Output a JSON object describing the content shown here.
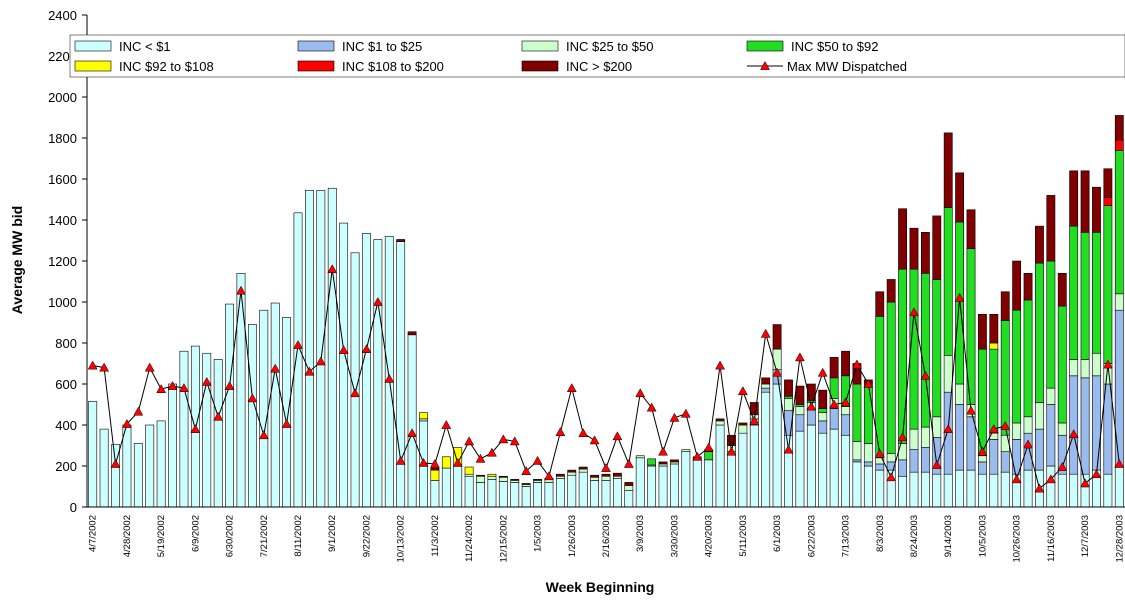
{
  "chart_data": {
    "type": "bar",
    "stacked": true,
    "y_label": "Average MW bid",
    "x_label": "Week Beginning",
    "categories": [
      "4/7/2002",
      null,
      null,
      "4/28/2002",
      null,
      null,
      "5/19/2002",
      null,
      null,
      "6/9/2002",
      null,
      null,
      "6/30/2002",
      null,
      null,
      "7/21/2002",
      null,
      null,
      "8/11/2002",
      null,
      null,
      "9/1/2002",
      null,
      null,
      "9/22/2002",
      null,
      null,
      "10/13/2002",
      null,
      null,
      "11/3/2002",
      null,
      null,
      "11/24/2002",
      null,
      null,
      "12/15/2002",
      null,
      null,
      "1/5/2003",
      null,
      null,
      "1/26/2003",
      null,
      null,
      "2/16/2003",
      null,
      null,
      "3/9/2003",
      null,
      null,
      "3/30/2003",
      null,
      null,
      "4/20/2003",
      null,
      null,
      "5/11/2003",
      null,
      null,
      "6/1/2003",
      null,
      null,
      "6/22/2003",
      null,
      null,
      "7/13/2003",
      null,
      null,
      "8/3/2003",
      null,
      null,
      "8/24/2003",
      null,
      null,
      "9/14/2003",
      null,
      null,
      "10/5/2003",
      null,
      null,
      "10/26/2003",
      null,
      null,
      "11/16/2003",
      null,
      null,
      "12/7/2003",
      null,
      null,
      "12/28/2003"
    ],
    "ylim": [
      0,
      2400
    ],
    "yticks": [
      0,
      200,
      400,
      600,
      800,
      1000,
      1200,
      1400,
      1600,
      1800,
      2000,
      2200,
      2400
    ],
    "grid": false,
    "series": [
      {
        "name": "INC < $1",
        "type": "bar",
        "color": "#ccffff",
        "values": [
          515,
          380,
          305,
          400,
          310,
          400,
          420,
          600,
          760,
          785,
          750,
          720,
          990,
          1140,
          890,
          960,
          995,
          925,
          1435,
          1545,
          1545,
          1555,
          1385,
          1240,
          1335,
          1305,
          1320,
          1295,
          840,
          420,
          130,
          190,
          200,
          150,
          120,
          135,
          125,
          120,
          100,
          120,
          120,
          140,
          155,
          170,
          130,
          130,
          140,
          80,
          240,
          200,
          200,
          210,
          270,
          230,
          230,
          400,
          270,
          360,
          400,
          560,
          600,
          350,
          370,
          400,
          360,
          380,
          350,
          220,
          200,
          180,
          180,
          150,
          170,
          170,
          160,
          160,
          180,
          180,
          160,
          160,
          170,
          160,
          180,
          180,
          200,
          160,
          160,
          160,
          180,
          160,
          200
        ]
      },
      {
        "name": "INC $1 to $25",
        "type": "bar",
        "color": "#99bbee",
        "values": [
          0,
          0,
          0,
          0,
          0,
          0,
          0,
          0,
          0,
          0,
          0,
          0,
          0,
          0,
          0,
          0,
          0,
          0,
          0,
          0,
          0,
          0,
          0,
          0,
          0,
          0,
          0,
          0,
          0,
          0,
          0,
          0,
          0,
          0,
          0,
          0,
          0,
          0,
          0,
          0,
          0,
          0,
          0,
          0,
          0,
          0,
          0,
          0,
          0,
          0,
          0,
          0,
          0,
          0,
          0,
          0,
          0,
          0,
          30,
          20,
          70,
          120,
          80,
          80,
          60,
          100,
          100,
          10,
          20,
          30,
          40,
          80,
          110,
          120,
          180,
          400,
          320,
          260,
          60,
          170,
          100,
          170,
          180,
          200,
          300,
          190,
          480,
          470,
          460,
          440,
          760
        ]
      },
      {
        "name": "INC $25 to $50",
        "type": "bar",
        "color": "#ccffcc",
        "values": [
          0,
          0,
          0,
          0,
          0,
          0,
          0,
          0,
          0,
          0,
          0,
          0,
          0,
          0,
          0,
          0,
          0,
          0,
          0,
          0,
          0,
          0,
          0,
          0,
          0,
          0,
          0,
          0,
          0,
          10,
          0,
          0,
          0,
          10,
          30,
          15,
          20,
          10,
          10,
          10,
          20,
          10,
          15,
          15,
          15,
          20,
          10,
          25,
          10,
          5,
          10,
          10,
          10,
          0,
          0,
          20,
          30,
          40,
          20,
          20,
          100,
          60,
          40,
          30,
          40,
          50,
          40,
          90,
          90,
          30,
          40,
          80,
          100,
          100,
          100,
          180,
          100,
          60,
          30,
          30,
          80,
          80,
          80,
          130,
          80,
          60,
          80,
          90,
          110,
          100,
          80
        ]
      },
      {
        "name": "INC $50 to $92",
        "type": "bar",
        "color": "#22dd22",
        "values": [
          0,
          0,
          0,
          0,
          0,
          0,
          0,
          0,
          0,
          0,
          0,
          0,
          0,
          0,
          0,
          0,
          0,
          0,
          0,
          0,
          0,
          0,
          0,
          0,
          0,
          0,
          0,
          0,
          0,
          0,
          0,
          0,
          0,
          0,
          0,
          0,
          0,
          0,
          0,
          0,
          0,
          0,
          0,
          0,
          0,
          0,
          0,
          0,
          0,
          30,
          0,
          0,
          0,
          0,
          40,
          0,
          0,
          0,
          0,
          0,
          0,
          10,
          10,
          10,
          20,
          100,
          150,
          280,
          290,
          690,
          740,
          850,
          780,
          750,
          670,
          720,
          790,
          760,
          520,
          410,
          560,
          550,
          570,
          680,
          620,
          570,
          650,
          620,
          590,
          770,
          700
        ]
      },
      {
        "name": "INC $92 to $108",
        "type": "bar",
        "color": "#ffff00",
        "values": [
          0,
          0,
          0,
          0,
          0,
          0,
          0,
          0,
          0,
          0,
          0,
          0,
          0,
          0,
          0,
          0,
          0,
          0,
          0,
          0,
          0,
          0,
          0,
          0,
          0,
          0,
          0,
          0,
          0,
          30,
          50,
          55,
          90,
          35,
          0,
          10,
          0,
          0,
          0,
          0,
          0,
          0,
          0,
          0,
          0,
          0,
          0,
          0,
          0,
          0,
          0,
          0,
          0,
          0,
          0,
          0,
          0,
          0,
          0,
          0,
          0,
          0,
          0,
          0,
          0,
          0,
          0,
          0,
          0,
          0,
          0,
          0,
          0,
          0,
          0,
          0,
          0,
          0,
          0,
          30,
          0,
          0,
          0,
          0,
          0,
          0,
          0,
          0,
          0,
          0,
          0
        ]
      },
      {
        "name": "INC $108 to $200",
        "type": "bar",
        "color": "#ff0000",
        "values": [
          0,
          0,
          0,
          0,
          0,
          0,
          0,
          0,
          0,
          0,
          0,
          0,
          0,
          0,
          0,
          0,
          0,
          0,
          0,
          0,
          0,
          0,
          0,
          0,
          0,
          0,
          0,
          0,
          0,
          0,
          0,
          0,
          0,
          0,
          0,
          0,
          0,
          0,
          0,
          0,
          0,
          0,
          0,
          0,
          0,
          0,
          0,
          0,
          0,
          0,
          0,
          0,
          0,
          0,
          0,
          0,
          0,
          0,
          0,
          0,
          0,
          0,
          0,
          0,
          0,
          0,
          0,
          0,
          0,
          0,
          0,
          0,
          0,
          0,
          0,
          0,
          0,
          0,
          0,
          0,
          0,
          0,
          0,
          0,
          0,
          0,
          0,
          0,
          0,
          40,
          50
        ]
      },
      {
        "name": "INC > $200",
        "type": "bar",
        "color": "#800000",
        "values": [
          0,
          0,
          0,
          0,
          0,
          0,
          0,
          0,
          0,
          0,
          0,
          0,
          0,
          0,
          0,
          0,
          0,
          0,
          0,
          0,
          0,
          0,
          0,
          0,
          0,
          0,
          0,
          10,
          15,
          0,
          10,
          0,
          0,
          0,
          5,
          0,
          5,
          5,
          5,
          5,
          0,
          10,
          10,
          10,
          10,
          10,
          15,
          15,
          0,
          0,
          10,
          10,
          0,
          15,
          10,
          10,
          50,
          10,
          60,
          30,
          120,
          80,
          90,
          80,
          90,
          100,
          120,
          100,
          20,
          120,
          110,
          295,
          200,
          200,
          310,
          365,
          240,
          190,
          170,
          140,
          140,
          240,
          130,
          180,
          320,
          160,
          270,
          300,
          220,
          140,
          120
        ]
      },
      {
        "name": "Max MW Dispatched",
        "type": "line",
        "color": "#000000",
        "marker": "triangle",
        "marker_color": "#ff0000",
        "values": [
          690,
          680,
          210,
          405,
          465,
          680,
          575,
          590,
          580,
          380,
          610,
          440,
          590,
          1055,
          530,
          350,
          675,
          405,
          790,
          660,
          710,
          1160,
          765,
          555,
          770,
          1000,
          625,
          225,
          360,
          215,
          210,
          400,
          215,
          320,
          235,
          265,
          330,
          320,
          175,
          225,
          150,
          365,
          580,
          360,
          325,
          190,
          345,
          210,
          555,
          485,
          270,
          435,
          455,
          245,
          290,
          690,
          270,
          565,
          420,
          845,
          655,
          280,
          730,
          490,
          655,
          500,
          510,
          695,
          600,
          260,
          145,
          340,
          950,
          640,
          205,
          380,
          1020,
          470,
          270,
          380,
          395,
          135,
          305,
          90,
          135,
          195,
          355,
          115,
          160,
          695,
          210
        ]
      }
    ]
  }
}
